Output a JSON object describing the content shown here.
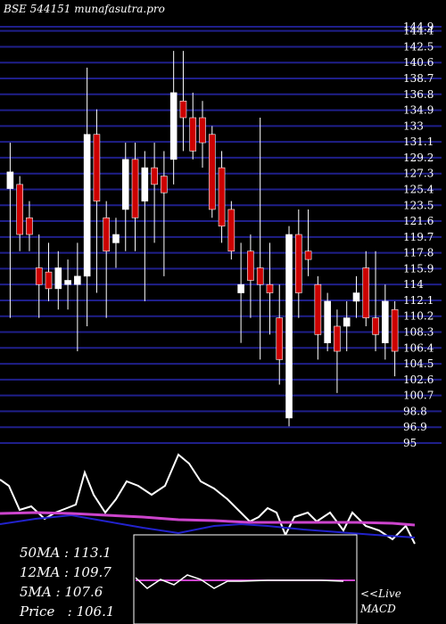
{
  "title": "BSE 544151 munafasutra.pro",
  "chart_data": {
    "type": "candlestick",
    "title": "BSE 544151 munafasutra.pro",
    "ylim": [
      95,
      144.9
    ],
    "y_ticks": [
      "144.9",
      "144.4",
      "142.5",
      "140.6",
      "138.7",
      "136.8",
      "134.9",
      "133",
      "131.1",
      "129.2",
      "127.3",
      "125.4",
      "123.5",
      "121.6",
      "119.7",
      "117.8",
      "115.9",
      "114",
      "112.1",
      "110.2",
      "108.3",
      "106.4",
      "104.5",
      "102.6",
      "100.7",
      "98.8",
      "96.9",
      "95"
    ],
    "y_tick_values": [
      144.9,
      144.4,
      142.5,
      140.6,
      138.7,
      136.8,
      134.9,
      133,
      131.1,
      129.2,
      127.3,
      125.4,
      123.5,
      121.6,
      119.7,
      117.8,
      115.9,
      114,
      112.1,
      110.2,
      108.3,
      106.4,
      104.5,
      102.6,
      100.7,
      98.8,
      96.9,
      95
    ],
    "candles": [
      {
        "o": 127.5,
        "h": 131,
        "l": 110,
        "c": 125.5,
        "dir": "up"
      },
      {
        "o": 126,
        "h": 127,
        "l": 118,
        "c": 120,
        "dir": "down"
      },
      {
        "o": 122,
        "h": 124,
        "l": 118,
        "c": 120,
        "dir": "down"
      },
      {
        "o": 116,
        "h": 120,
        "l": 110,
        "c": 114,
        "dir": "down"
      },
      {
        "o": 115.5,
        "h": 119,
        "l": 112,
        "c": 113.5,
        "dir": "down"
      },
      {
        "o": 113.5,
        "h": 118,
        "l": 111,
        "c": 116,
        "dir": "up"
      },
      {
        "o": 114.5,
        "h": 117,
        "l": 111,
        "c": 114,
        "dir": "up"
      },
      {
        "o": 114,
        "h": 119,
        "l": 106,
        "c": 115,
        "dir": "up"
      },
      {
        "o": 115,
        "h": 140,
        "l": 109,
        "c": 132,
        "dir": "up"
      },
      {
        "o": 132,
        "h": 135,
        "l": 113,
        "c": 124,
        "dir": "down"
      },
      {
        "o": 122,
        "h": 124,
        "l": 110,
        "c": 118,
        "dir": "down"
      },
      {
        "o": 119,
        "h": 122,
        "l": 116,
        "c": 120,
        "dir": "up"
      },
      {
        "o": 123,
        "h": 131,
        "l": 118,
        "c": 129,
        "dir": "up"
      },
      {
        "o": 129,
        "h": 131,
        "l": 118,
        "c": 122,
        "dir": "down"
      },
      {
        "o": 124,
        "h": 130,
        "l": 112,
        "c": 128,
        "dir": "up"
      },
      {
        "o": 128,
        "h": 131,
        "l": 119,
        "c": 126,
        "dir": "down"
      },
      {
        "o": 127,
        "h": 130,
        "l": 115,
        "c": 125,
        "dir": "down"
      },
      {
        "o": 129,
        "h": 142,
        "l": 126,
        "c": 137,
        "dir": "up"
      },
      {
        "o": 136,
        "h": 142,
        "l": 130,
        "c": 134,
        "dir": "down"
      },
      {
        "o": 134,
        "h": 137,
        "l": 129,
        "c": 130,
        "dir": "down"
      },
      {
        "o": 134,
        "h": 136,
        "l": 128,
        "c": 131,
        "dir": "down"
      },
      {
        "o": 132,
        "h": 133,
        "l": 122,
        "c": 123,
        "dir": "down"
      },
      {
        "o": 128,
        "h": 130,
        "l": 119,
        "c": 121,
        "dir": "down"
      },
      {
        "o": 123,
        "h": 124,
        "l": 117,
        "c": 118,
        "dir": "down"
      },
      {
        "o": 114,
        "h": 119,
        "l": 107,
        "c": 113,
        "dir": "up"
      },
      {
        "o": 118,
        "h": 120,
        "l": 110,
        "c": 114.5,
        "dir": "down"
      },
      {
        "o": 114,
        "h": 134,
        "l": 105,
        "c": 116,
        "dir": "down"
      },
      {
        "o": 114,
        "h": 119,
        "l": 108,
        "c": 113,
        "dir": "down"
      },
      {
        "o": 110,
        "h": 114,
        "l": 102,
        "c": 105,
        "dir": "down"
      },
      {
        "o": 98,
        "h": 121,
        "l": 97,
        "c": 120,
        "dir": "up"
      },
      {
        "o": 120,
        "h": 123,
        "l": 110,
        "c": 113,
        "dir": "down"
      },
      {
        "o": 117,
        "h": 123,
        "l": 115,
        "c": 118,
        "dir": "down"
      },
      {
        "o": 114,
        "h": 115,
        "l": 105,
        "c": 108,
        "dir": "down"
      },
      {
        "o": 107,
        "h": 113,
        "l": 106,
        "c": 112,
        "dir": "up"
      },
      {
        "o": 109,
        "h": 111,
        "l": 101,
        "c": 106,
        "dir": "down"
      },
      {
        "o": 109,
        "h": 112,
        "l": 106,
        "c": 110,
        "dir": "up"
      },
      {
        "o": 112,
        "h": 115,
        "l": 110,
        "c": 113,
        "dir": "up"
      },
      {
        "o": 116,
        "h": 118,
        "l": 109,
        "c": 110,
        "dir": "down"
      },
      {
        "o": 110,
        "h": 118,
        "l": 106,
        "c": 108,
        "dir": "down"
      },
      {
        "o": 107,
        "h": 114,
        "l": 105,
        "c": 112,
        "dir": "up"
      },
      {
        "o": 111,
        "h": 112,
        "l": 103,
        "c": 106,
        "dir": "down"
      }
    ],
    "ma_50": 113.1,
    "ma_12": 109.7,
    "ma_5": 107.6,
    "price": 106.1
  },
  "info": {
    "ma50_label": "50MA : 113.1",
    "ma12_label": "12MA : 109.7",
    "ma5_label": "5MA : 107.6",
    "price_label": "Price   : 106.1"
  },
  "macd": {
    "live_label": "<<Live",
    "macd_label": "MACD"
  },
  "colors": {
    "background": "#000000",
    "gridline": "#1f1f8a",
    "up": "#ffffff",
    "down": "#cc0000",
    "ma_magenta": "#cc44cc",
    "ma_blue": "#2222cc",
    "ma_white": "#ffffff"
  }
}
